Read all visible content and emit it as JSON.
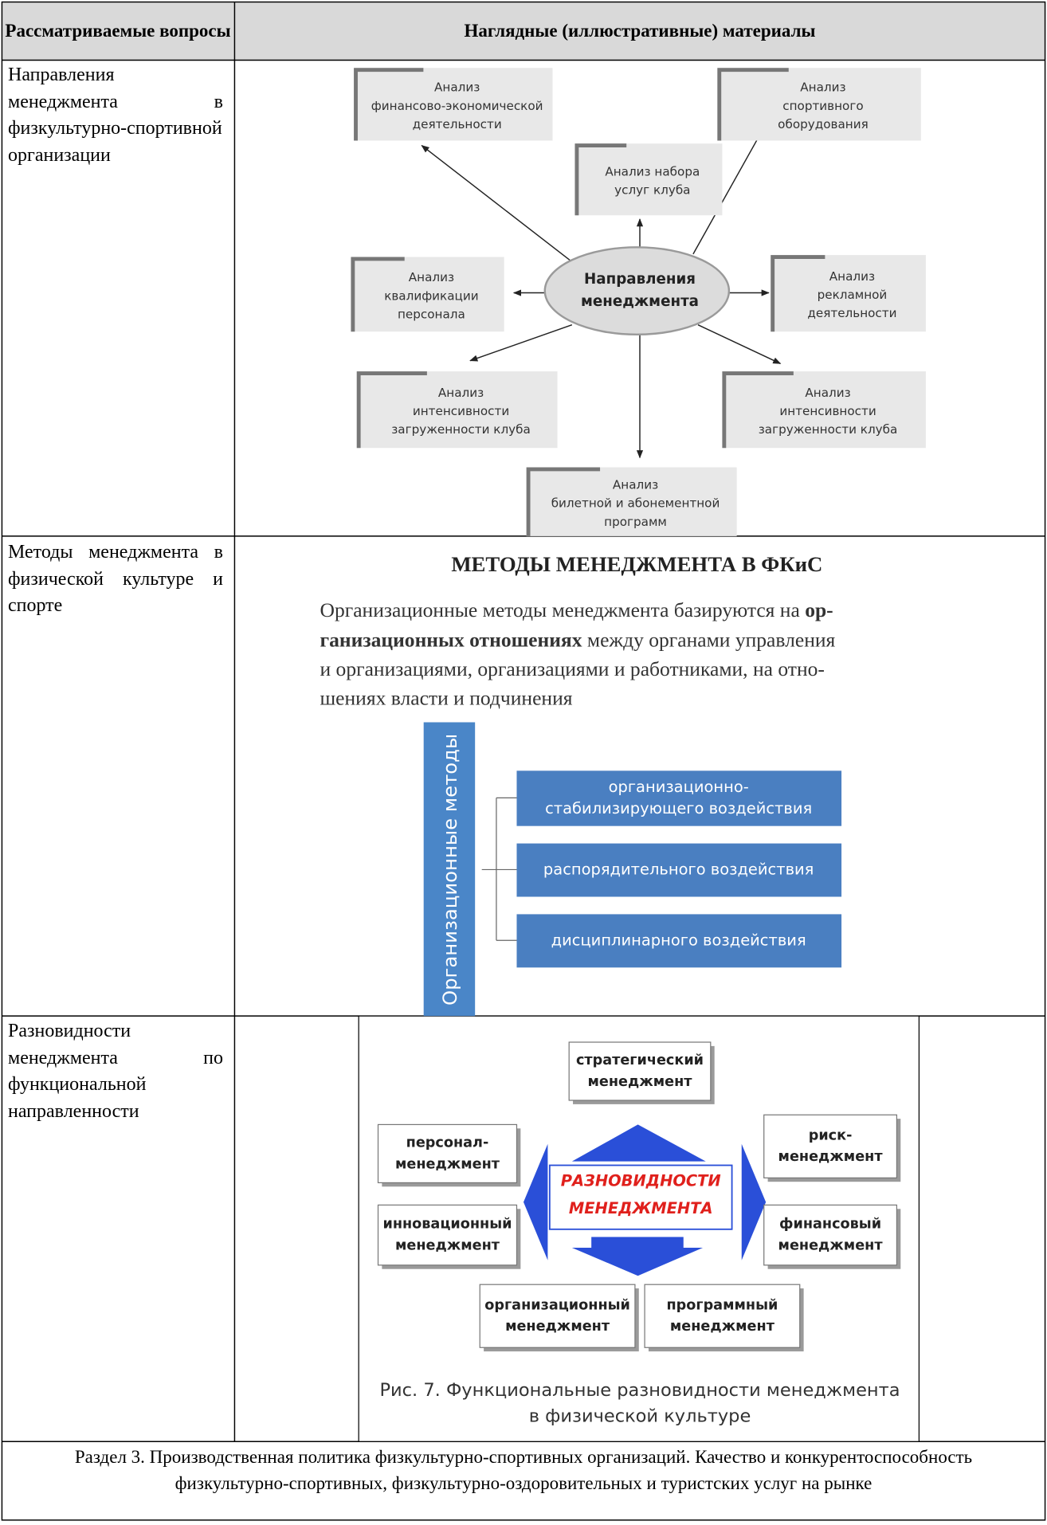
{
  "header": {
    "questions": "Рассматриваемые вопросы",
    "materials": "Наглядные (иллюстративные) материалы"
  },
  "rows": [
    {
      "question": "Направления менеджмента в физкультурно-спортивной организации",
      "diagram": {
        "center": [
          "Направления",
          "менеджмента"
        ],
        "nodes": [
          [
            "Анализ",
            "финансово-экономической",
            "деятельности"
          ],
          [
            "Анализ",
            "спортивного",
            "оборудования"
          ],
          [
            "Анализ набора",
            "услуг клуба"
          ],
          [
            "Анализ",
            "квалификации",
            "персонала"
          ],
          [
            "Анализ",
            "рекламной",
            "деятельности"
          ],
          [
            "Анализ",
            "интенсивности",
            "загруженности клуба"
          ],
          [
            "Анализ",
            "интенсивности",
            "загруженности клуба"
          ],
          [
            "Анализ",
            "билетной и абонементной",
            "программ"
          ]
        ]
      }
    },
    {
      "question": "Методы менеджмента в физической культуре и спорте",
      "diagram": {
        "title": "МЕТОДЫ МЕНЕДЖМЕНТА В ФКиС",
        "paragraph": [
          [
            {
              "text": "Организационные методы менеджмента базируются на "
            },
            {
              "text": "ор-",
              "bold": true
            }
          ],
          [
            {
              "text": "ганизационных отношениях",
              "bold": true
            },
            {
              "text": " между органами управления"
            }
          ],
          [
            {
              "text": "и организациями, организациями и работниками, на отно-"
            }
          ],
          [
            {
              "text": "шениях власти и подчинения"
            }
          ]
        ],
        "axis": "Организационные методы",
        "items": [
          [
            "организационно-",
            "стабилизирующего воздействия"
          ],
          [
            "распорядительного воздействия"
          ],
          [
            "дисциплинарного воздействия"
          ]
        ]
      }
    },
    {
      "question": "Разновидности менеджмента по функциональной направленности",
      "diagram": {
        "center": [
          "РАЗНОВИДНОСТИ",
          "МЕНЕДЖМЕНТА"
        ],
        "nodes": [
          [
            "стратегический",
            "менеджмент"
          ],
          [
            "персонал-",
            "менеджмент"
          ],
          [
            "риск-",
            "менеджмент"
          ],
          [
            "инновационный",
            "менеджмент"
          ],
          [
            "финансовый",
            "менеджмент"
          ],
          [
            "организационный",
            "менеджмент"
          ],
          [
            "программный",
            "менеджмент"
          ]
        ],
        "caption": [
          "Рис. 7. Функциональные разновидности менеджмента",
          "в физической культуре"
        ]
      }
    }
  ],
  "footer": "Раздел 3. Производственная политика физкультурно-спортивных организаций. Качество и конкурентоспособность физкультурно-спортивных, физкультурно-оздоровительных и туристских услуг на рынке"
}
